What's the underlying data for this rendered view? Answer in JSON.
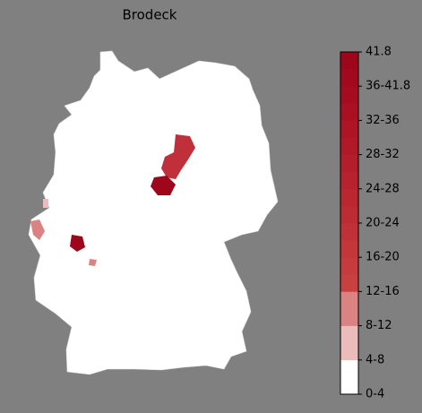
{
  "title": "Brodeck",
  "colorbar": {
    "ticks": [
      "0-4",
      "4-8",
      "8-12",
      "12-16",
      "16-20",
      "20-24",
      "24-28",
      "28-32",
      "32-36",
      "36-41.8",
      "41.8"
    ],
    "colors": [
      "#ffffff",
      "#ffffff",
      "#ecbcbc",
      "#ecbcbc",
      "#db8282",
      "#db8282",
      "#c94040",
      "#c63b3d",
      "#c3363a",
      "#c03137",
      "#bd2c34",
      "#ba2731",
      "#b7222e",
      "#b41d2b",
      "#b11828",
      "#ae1425",
      "#aa1022",
      "#a60c20",
      "#a2091e",
      "#9e061c"
    ]
  }
}
